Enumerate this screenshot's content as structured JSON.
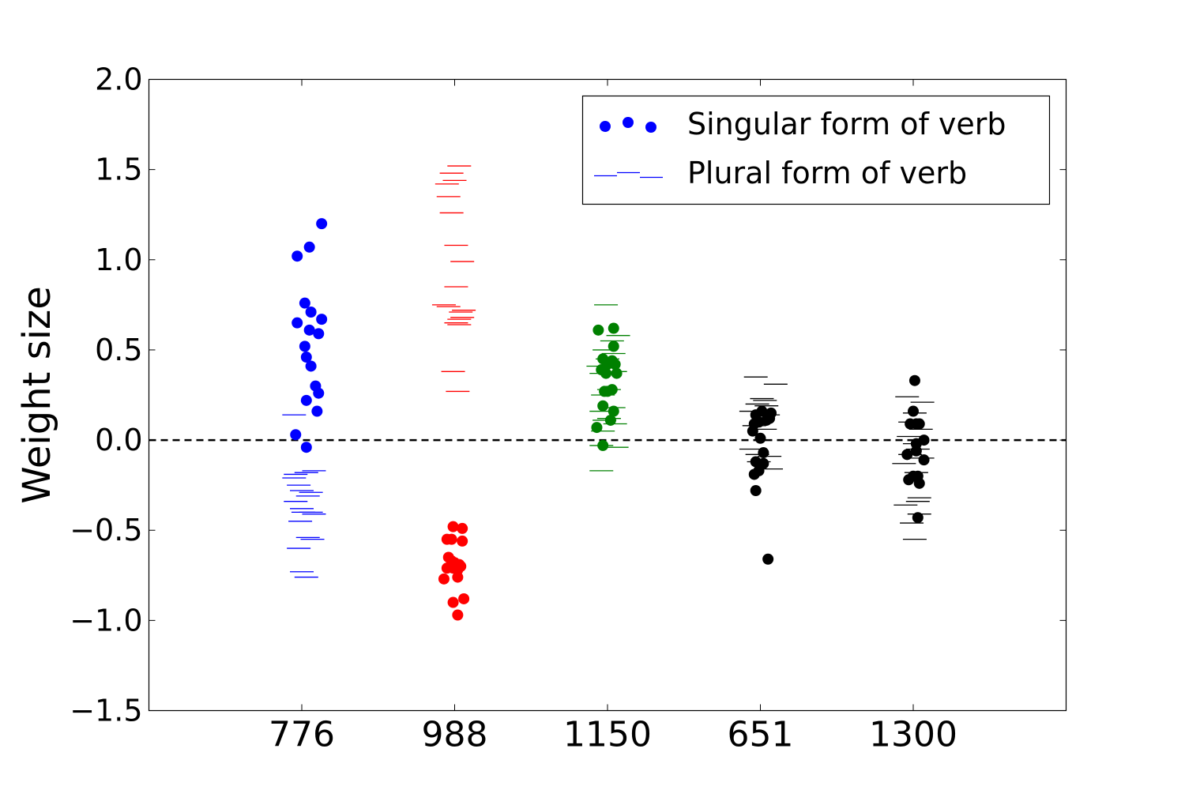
{
  "chart_data": {
    "type": "scatter",
    "title": "",
    "xlabel": "",
    "ylabel": "Weight size",
    "categories": [
      "776",
      "988",
      "1150",
      "651",
      "1300"
    ],
    "colors": [
      "#0000ff",
      "#ff0000",
      "#008000",
      "#000000",
      "#000000"
    ],
    "ylim": [
      -1.5,
      2.0
    ],
    "yticks": [
      -1.5,
      -1.0,
      -0.5,
      0.0,
      0.5,
      1.0,
      1.5,
      2.0
    ],
    "ytick_labels": [
      "−1.5",
      "−1.0",
      "−0.5",
      "0.0",
      "0.5",
      "1.0",
      "1.5",
      "2.0"
    ],
    "reference_line": 0.0,
    "grid": false,
    "legend": {
      "position": "top-right",
      "entries": [
        {
          "label": "Singular form of verb",
          "marker": "circle"
        },
        {
          "label": "Plural form of verb",
          "marker": "hline"
        }
      ]
    },
    "series": [
      {
        "name": "Singular form of verb",
        "marker": "circle",
        "points": [
          [
            0,
            -0.03,
            1.02
          ],
          [
            0,
            0.05,
            1.07
          ],
          [
            0,
            0.13,
            1.2
          ],
          [
            0,
            0.02,
            0.76
          ],
          [
            0,
            -0.03,
            0.65
          ],
          [
            0,
            0.06,
            0.71
          ],
          [
            0,
            0.13,
            0.67
          ],
          [
            0,
            0.05,
            0.61
          ],
          [
            0,
            0.11,
            0.59
          ],
          [
            0,
            0.02,
            0.52
          ],
          [
            0,
            0.03,
            0.46
          ],
          [
            0,
            0.06,
            0.41
          ],
          [
            0,
            0.09,
            0.3
          ],
          [
            0,
            0.11,
            0.26
          ],
          [
            0,
            0.03,
            0.22
          ],
          [
            0,
            0.1,
            0.16
          ],
          [
            0,
            -0.04,
            0.03
          ],
          [
            0,
            0.03,
            -0.04
          ],
          [
            1,
            -0.01,
            -0.48
          ],
          [
            1,
            0.05,
            -0.49
          ],
          [
            1,
            -0.05,
            -0.55
          ],
          [
            1,
            -0.02,
            -0.55
          ],
          [
            1,
            0.05,
            -0.56
          ],
          [
            1,
            -0.04,
            -0.65
          ],
          [
            1,
            -0.02,
            -0.67
          ],
          [
            1,
            0.0,
            -0.68
          ],
          [
            1,
            0.03,
            -0.69
          ],
          [
            1,
            -0.05,
            -0.71
          ],
          [
            1,
            -0.01,
            -0.71
          ],
          [
            1,
            0.02,
            -0.72
          ],
          [
            1,
            0.04,
            -0.7
          ],
          [
            1,
            -0.07,
            -0.77
          ],
          [
            1,
            0.02,
            -0.76
          ],
          [
            1,
            0.06,
            -0.88
          ],
          [
            1,
            -0.01,
            -0.9
          ],
          [
            1,
            0.02,
            -0.97
          ],
          [
            2,
            -0.06,
            0.61
          ],
          [
            2,
            0.04,
            0.62
          ],
          [
            2,
            0.04,
            0.52
          ],
          [
            2,
            -0.03,
            0.45
          ],
          [
            2,
            0.0,
            0.42
          ],
          [
            2,
            0.03,
            0.44
          ],
          [
            2,
            0.05,
            0.42
          ],
          [
            2,
            -0.04,
            0.39
          ],
          [
            2,
            -0.01,
            0.37
          ],
          [
            2,
            0.06,
            0.37
          ],
          [
            2,
            -0.02,
            0.27
          ],
          [
            2,
            0.0,
            0.27
          ],
          [
            2,
            0.03,
            0.28
          ],
          [
            2,
            -0.03,
            0.19
          ],
          [
            2,
            0.04,
            0.16
          ],
          [
            2,
            0.02,
            0.11
          ],
          [
            2,
            -0.07,
            0.07
          ],
          [
            2,
            -0.03,
            -0.03
          ],
          [
            3,
            -0.03,
            0.14
          ],
          [
            3,
            0.01,
            0.16
          ],
          [
            3,
            0.07,
            0.15
          ],
          [
            3,
            0.04,
            0.11
          ],
          [
            3,
            -0.04,
            0.09
          ],
          [
            3,
            -0.01,
            0.1
          ],
          [
            3,
            0.06,
            0.12
          ],
          [
            3,
            -0.05,
            0.05
          ],
          [
            3,
            0.0,
            0.01
          ],
          [
            3,
            0.02,
            -0.07
          ],
          [
            3,
            -0.03,
            -0.12
          ],
          [
            3,
            0.02,
            -0.13
          ],
          [
            3,
            -0.04,
            -0.19
          ],
          [
            3,
            -0.01,
            -0.17
          ],
          [
            3,
            -0.03,
            -0.28
          ],
          [
            3,
            0.05,
            -0.66
          ],
          [
            4,
            0.01,
            0.33
          ],
          [
            4,
            0.0,
            0.16
          ],
          [
            4,
            -0.02,
            0.09
          ],
          [
            4,
            0.02,
            0.09
          ],
          [
            4,
            0.04,
            0.09
          ],
          [
            4,
            0.02,
            -0.02
          ],
          [
            4,
            0.07,
            0.0
          ],
          [
            4,
            -0.04,
            -0.08
          ],
          [
            4,
            0.02,
            -0.06
          ],
          [
            4,
            0.07,
            -0.11
          ],
          [
            4,
            -0.03,
            -0.22
          ],
          [
            4,
            0.0,
            -0.2
          ],
          [
            4,
            0.03,
            -0.2
          ],
          [
            4,
            0.04,
            -0.24
          ],
          [
            4,
            0.03,
            -0.43
          ]
        ]
      },
      {
        "name": "Plural form of verb",
        "marker": "hline",
        "points": [
          [
            0,
            -0.05,
            0.14
          ],
          [
            0,
            -0.04,
            -0.19
          ],
          [
            0,
            -0.05,
            -0.21
          ],
          [
            0,
            -0.02,
            -0.25
          ],
          [
            0,
            0.0,
            -0.28
          ],
          [
            0,
            0.08,
            -0.17
          ],
          [
            0,
            0.03,
            -0.18
          ],
          [
            0,
            0.06,
            -0.29
          ],
          [
            0,
            0.04,
            -0.31
          ],
          [
            0,
            -0.04,
            -0.34
          ],
          [
            0,
            0.0,
            -0.38
          ],
          [
            0,
            0.01,
            -0.4
          ],
          [
            0,
            0.06,
            -0.4
          ],
          [
            0,
            0.08,
            -0.41
          ],
          [
            0,
            -0.01,
            -0.45
          ],
          [
            0,
            0.04,
            -0.54
          ],
          [
            0,
            0.07,
            -0.55
          ],
          [
            0,
            -0.02,
            -0.6
          ],
          [
            0,
            0.0,
            -0.73
          ],
          [
            0,
            0.03,
            -0.76
          ],
          [
            1,
            0.03,
            1.52
          ],
          [
            1,
            -0.02,
            1.48
          ],
          [
            1,
            0.0,
            1.44
          ],
          [
            1,
            -0.05,
            1.42
          ],
          [
            1,
            -0.04,
            1.35
          ],
          [
            1,
            -0.02,
            1.26
          ],
          [
            1,
            0.01,
            1.08
          ],
          [
            1,
            0.05,
            0.99
          ],
          [
            1,
            0.01,
            0.85
          ],
          [
            1,
            -0.07,
            0.75
          ],
          [
            1,
            -0.04,
            0.74
          ],
          [
            1,
            0.06,
            0.72
          ],
          [
            1,
            0.04,
            0.71
          ],
          [
            1,
            0.03,
            0.67
          ],
          [
            1,
            0.05,
            0.68
          ],
          [
            1,
            0.01,
            0.65
          ],
          [
            1,
            0.03,
            0.64
          ],
          [
            1,
            -0.01,
            0.38
          ],
          [
            1,
            0.02,
            0.27
          ],
          [
            2,
            -0.01,
            0.75
          ],
          [
            2,
            0.07,
            0.58
          ],
          [
            2,
            0.03,
            0.55
          ],
          [
            2,
            0.04,
            0.48
          ],
          [
            2,
            -0.02,
            0.5
          ],
          [
            2,
            0.0,
            0.45
          ],
          [
            2,
            -0.06,
            0.41
          ],
          [
            2,
            0.05,
            0.38
          ],
          [
            2,
            -0.04,
            0.37
          ],
          [
            2,
            0.01,
            0.28
          ],
          [
            2,
            -0.03,
            0.25
          ],
          [
            2,
            0.04,
            0.18
          ],
          [
            2,
            -0.04,
            0.16
          ],
          [
            2,
            0.01,
            0.12
          ],
          [
            2,
            -0.02,
            0.11
          ],
          [
            2,
            0.05,
            0.09
          ],
          [
            2,
            -0.03,
            0.05
          ],
          [
            2,
            -0.04,
            -0.03
          ],
          [
            2,
            0.06,
            -0.04
          ],
          [
            2,
            -0.04,
            -0.17
          ],
          [
            3,
            -0.03,
            0.35
          ],
          [
            3,
            0.1,
            0.31
          ],
          [
            3,
            0.01,
            0.23
          ],
          [
            3,
            0.03,
            0.22
          ],
          [
            3,
            -0.02,
            0.2
          ],
          [
            3,
            0.04,
            0.19
          ],
          [
            3,
            -0.06,
            0.16
          ],
          [
            3,
            0.05,
            0.14
          ],
          [
            3,
            -0.04,
            0.08
          ],
          [
            3,
            0.03,
            0.06
          ],
          [
            3,
            -0.06,
            -0.05
          ],
          [
            3,
            -0.02,
            -0.08
          ],
          [
            3,
            0.06,
            -0.09
          ],
          [
            3,
            -0.01,
            -0.12
          ],
          [
            3,
            0.07,
            -0.16
          ],
          [
            4,
            -0.04,
            0.24
          ],
          [
            4,
            0.06,
            0.21
          ],
          [
            4,
            0.01,
            0.15
          ],
          [
            4,
            -0.02,
            0.1
          ],
          [
            4,
            0.05,
            0.06
          ],
          [
            4,
            -0.03,
            0.02
          ],
          [
            4,
            0.01,
            -0.02
          ],
          [
            4,
            0.03,
            -0.05
          ],
          [
            4,
            -0.02,
            -0.08
          ],
          [
            4,
            0.06,
            -0.1
          ],
          [
            4,
            -0.06,
            -0.13
          ],
          [
            4,
            0.02,
            -0.18
          ],
          [
            4,
            0.04,
            -0.32
          ],
          [
            4,
            0.03,
            -0.34
          ],
          [
            4,
            -0.05,
            -0.36
          ],
          [
            4,
            0.04,
            -0.41
          ],
          [
            4,
            -0.01,
            -0.46
          ],
          [
            4,
            0.01,
            -0.55
          ]
        ]
      }
    ]
  }
}
